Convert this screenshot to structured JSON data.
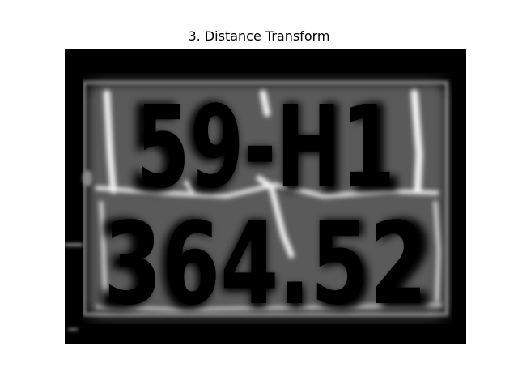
{
  "figure": {
    "title": "3. Distance Transform"
  },
  "image": {
    "plate_line_1": "59-H1",
    "plate_line_2": "364.52",
    "background_color": "#000000",
    "glow_color": "#ffffff"
  }
}
